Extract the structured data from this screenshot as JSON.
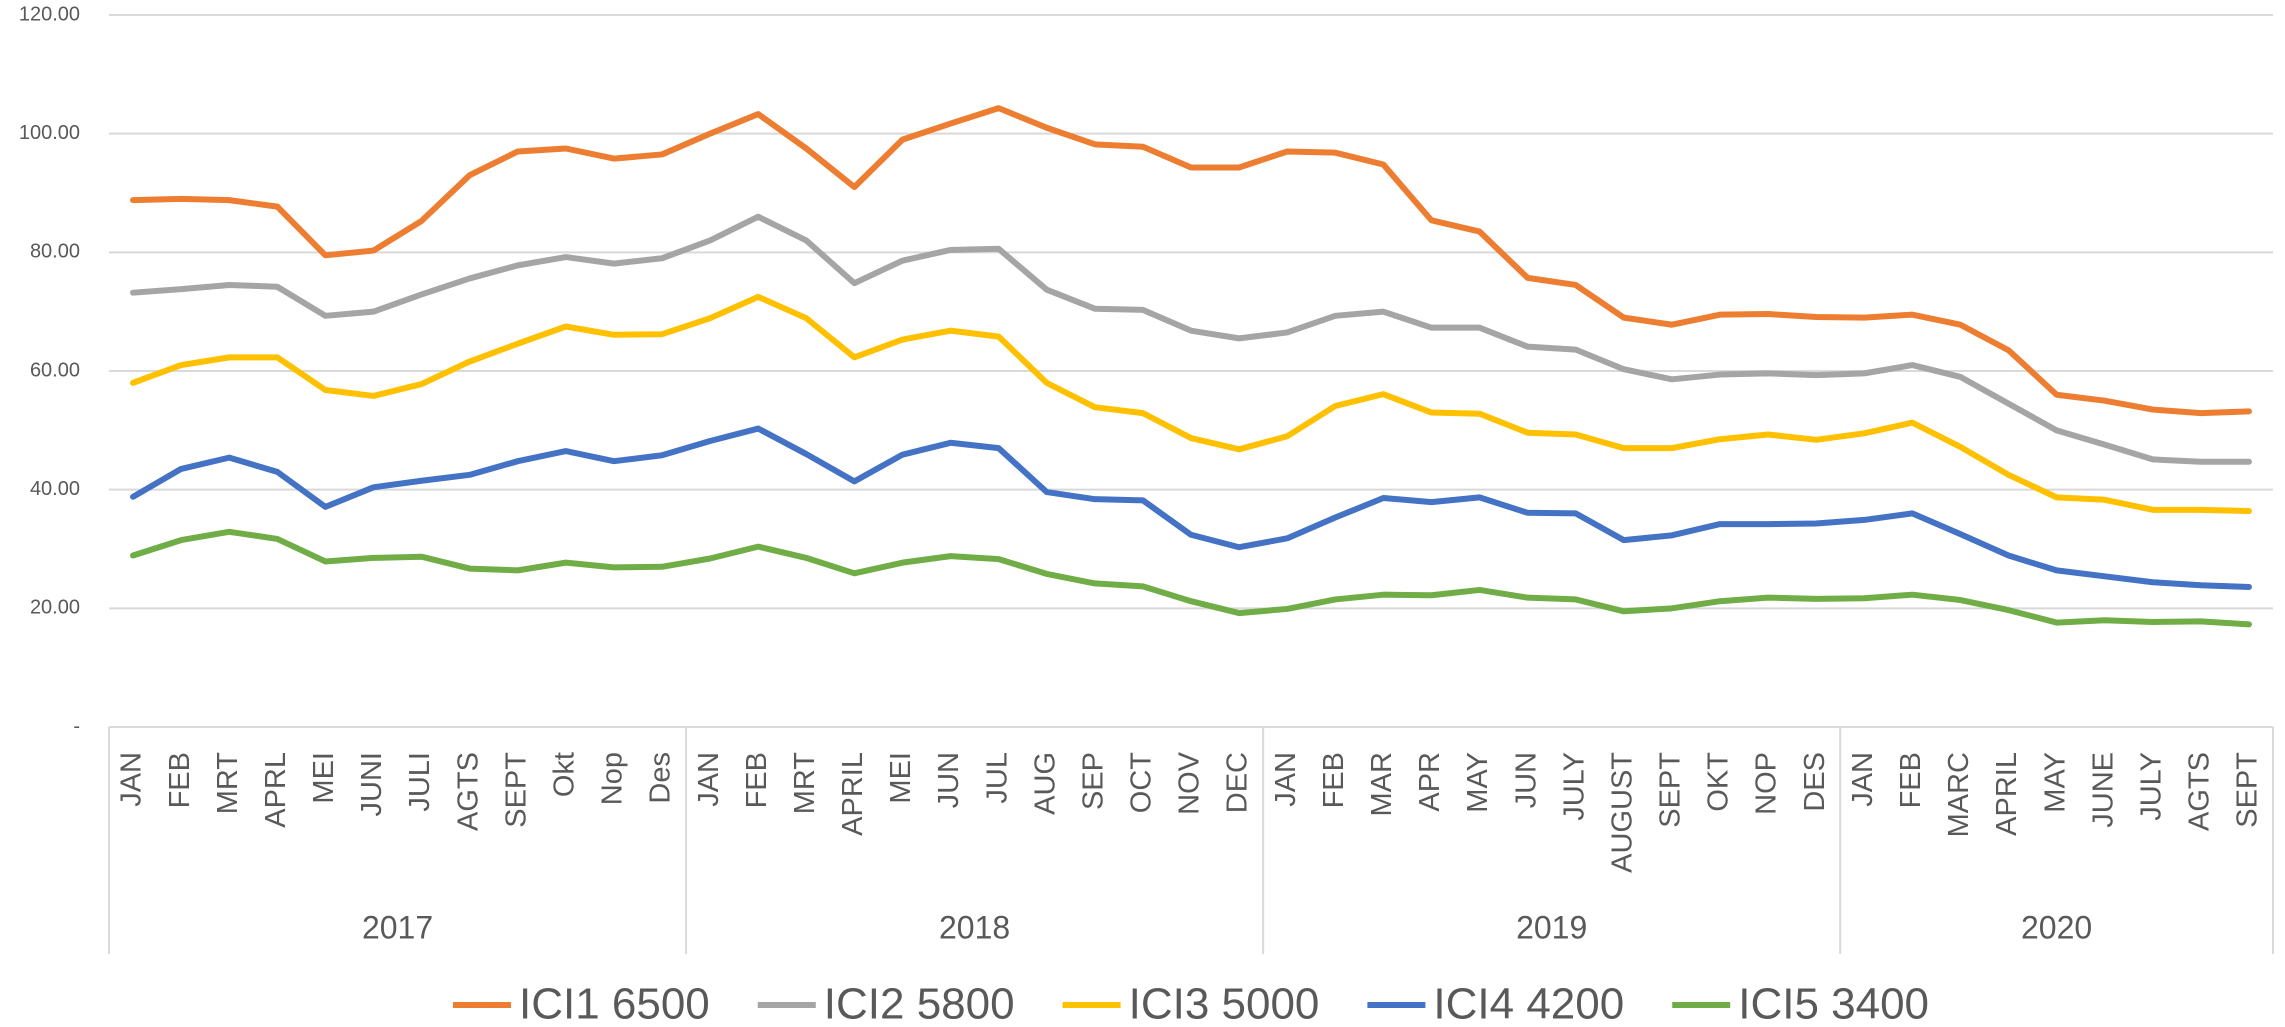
{
  "chart_data": {
    "type": "line",
    "groups": [
      {
        "label": "2017",
        "categories": [
          "JAN",
          "FEB",
          "MRT",
          "APRL",
          "MEI",
          "JUNI",
          "JULI",
          "AGTS",
          "SEPT",
          "Okt",
          "Nop",
          "Des"
        ]
      },
      {
        "label": "2018",
        "categories": [
          "JAN",
          "FEB",
          "MRT",
          "APRIL",
          "MEI",
          "JUN",
          "JUL",
          "AUG",
          "SEP",
          "OCT",
          "NOV",
          "DEC"
        ]
      },
      {
        "label": "2019",
        "categories": [
          "JAN",
          "FEB",
          "MAR",
          "APR",
          "MAY",
          "JUN",
          "JULY",
          "AUGUST",
          "SEPT",
          "OKT",
          "NOP",
          "DES"
        ]
      },
      {
        "label": "2020",
        "categories": [
          "JAN",
          "FEB",
          "MARC",
          "APRIL",
          "MAY",
          "JUNE",
          "JULY",
          "AGTS",
          "SEPT"
        ]
      }
    ],
    "series": [
      {
        "name": "ICI1 6500",
        "color": "#ED7D31",
        "values": [
          88.8,
          89,
          88.8,
          87.7,
          79.5,
          80.3,
          85.3,
          93,
          97,
          97.5,
          95.8,
          96.5,
          100,
          103.3,
          97.5,
          91,
          99,
          101.7,
          104.3,
          101,
          98.2,
          97.8,
          94.3,
          94.3,
          97,
          96.8,
          94.8,
          85.4,
          83.5,
          75.7,
          74.5,
          69,
          67.8,
          69.5,
          69.6,
          69.1,
          69,
          69.5,
          67.8,
          63.5,
          56,
          55,
          53.5,
          52.9,
          53.2
        ]
      },
      {
        "name": "ICI2 5800",
        "color": "#A5A5A5",
        "values": [
          73.2,
          73.8,
          74.5,
          74.2,
          69.3,
          70,
          72.9,
          75.6,
          77.8,
          79.2,
          78.1,
          79,
          82,
          86,
          82,
          74.8,
          78.6,
          80.4,
          80.6,
          73.7,
          70.5,
          70.3,
          66.8,
          65.5,
          66.5,
          69.3,
          70,
          67.3,
          67.3,
          64.1,
          63.6,
          60.3,
          58.6,
          59.4,
          59.6,
          59.3,
          59.6,
          61,
          59,
          54.5,
          50,
          47.6,
          45.1,
          44.7,
          44.7
        ]
      },
      {
        "name": "ICI3 5000",
        "color": "#FFC000",
        "values": [
          58,
          61,
          62.3,
          62.3,
          56.8,
          55.8,
          57.8,
          61.6,
          64.6,
          67.5,
          66.1,
          66.2,
          68.9,
          72.5,
          68.9,
          62.3,
          65.3,
          66.8,
          65.8,
          58,
          53.9,
          52.9,
          48.7,
          46.8,
          49,
          54.1,
          56.1,
          53,
          52.8,
          49.6,
          49.3,
          47,
          47,
          48.5,
          49.3,
          48.4,
          49.5,
          51.3,
          47.2,
          42.5,
          38.7,
          38.3,
          36.6,
          36.6,
          36.4
        ]
      },
      {
        "name": "ICI4 4200",
        "color": "#4472C4",
        "values": [
          38.8,
          43.5,
          45.4,
          43,
          37.1,
          40.4,
          41.5,
          42.5,
          44.8,
          46.5,
          44.8,
          45.8,
          48.2,
          50.3,
          46,
          41.4,
          45.9,
          47.9,
          47,
          39.6,
          38.4,
          38.2,
          32.4,
          30.3,
          31.8,
          35.3,
          38.6,
          37.9,
          38.7,
          36.1,
          36,
          31.5,
          32.3,
          34.2,
          34.2,
          34.3,
          34.9,
          36,
          32.5,
          28.9,
          26.4,
          25.4,
          24.4,
          23.9,
          23.6
        ]
      },
      {
        "name": "ICI5 3400",
        "color": "#70AD47",
        "values": [
          28.9,
          31.5,
          32.9,
          31.7,
          27.9,
          28.5,
          28.7,
          26.7,
          26.4,
          27.7,
          26.9,
          27,
          28.4,
          30.4,
          28.5,
          25.9,
          27.7,
          28.8,
          28.3,
          25.8,
          24.2,
          23.7,
          21.2,
          19.2,
          19.9,
          21.5,
          22.3,
          22.2,
          23.1,
          21.8,
          21.5,
          19.5,
          20,
          21.2,
          21.8,
          21.6,
          21.7,
          22.3,
          21.4,
          19.7,
          17.6,
          18,
          17.7,
          17.8,
          17.3
        ]
      }
    ],
    "ylim": [
      0,
      120
    ],
    "yticks": [
      {
        "value": 0,
        "label": "-"
      },
      {
        "value": 20,
        "label": "20.00"
      },
      {
        "value": 40,
        "label": "40.00"
      },
      {
        "value": 60,
        "label": "60.00"
      },
      {
        "value": 80,
        "label": "80.00"
      },
      {
        "value": 100,
        "label": "100.00"
      },
      {
        "value": 120,
        "label": "120.00"
      }
    ],
    "grid": true,
    "legend": "bottom"
  }
}
